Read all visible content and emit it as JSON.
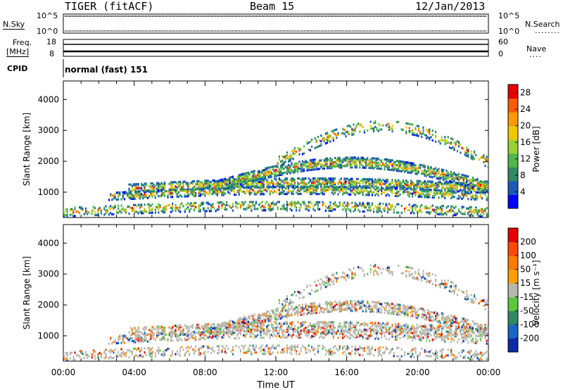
{
  "header": {
    "radar": "TIGER (fitACF)",
    "beam": "Beam 15",
    "date": "12/Jan/2013"
  },
  "panels": {
    "nsky_label": "N.Sky",
    "nsearch_label": "N.Search",
    "nsky_ticks": [
      "10^5",
      "10^0"
    ],
    "freq_label_1": "Freq.",
    "freq_label_2": "[MHz]",
    "freq_ticks": [
      "18",
      "8"
    ],
    "nave_label": "Nave",
    "nave_ticks": [
      "60",
      "0"
    ],
    "cpid_label": "CPID",
    "cpid_value": "normal (fast) 151"
  },
  "colors": {
    "power_scale": [
      "#0000ff",
      "#1a5ab4",
      "#2f8a62",
      "#4fb848",
      "#9ad034",
      "#f0c800",
      "#ff9a00",
      "#ff5a00",
      "#e60000"
    ],
    "velocity_scale": [
      "#0b2aa8",
      "#1866c8",
      "#2f8a62",
      "#5ac83a",
      "#b8b8b0",
      "#ffa000",
      "#ff7a00",
      "#ff4a00",
      "#e60000"
    ]
  },
  "chart_data": [
    {
      "type": "heatmap",
      "title": "Power",
      "xlabel": "",
      "ylabel": "Slant Range [km]",
      "x_ticks": [
        "00:00",
        "04:00",
        "08:00",
        "12:00",
        "16:00",
        "20:00",
        "00:00"
      ],
      "xlim_hours": [
        0,
        24
      ],
      "y_ticks": [
        1000,
        2000,
        3000,
        4000
      ],
      "ylim": [
        180,
        4600
      ],
      "colorbar": {
        "label": "Power [dB]",
        "ticks": [
          4,
          8,
          12,
          16,
          20,
          24,
          28
        ],
        "range": [
          0,
          30
        ]
      }
    },
    {
      "type": "heatmap",
      "title": "Velocity",
      "xlabel": "Time UT",
      "ylabel": "Slant Range [km]",
      "x_ticks": [
        "00:00",
        "04:00",
        "08:00",
        "12:00",
        "16:00",
        "20:00",
        "00:00"
      ],
      "xlim_hours": [
        0,
        24
      ],
      "y_ticks": [
        1000,
        2000,
        3000,
        4000
      ],
      "ylim": [
        180,
        4600
      ],
      "colorbar": {
        "label": "Velocity [m s⁻¹]",
        "ticks": [
          200,
          100,
          50,
          15,
          -15,
          -50,
          -100,
          -200
        ]
      }
    }
  ]
}
